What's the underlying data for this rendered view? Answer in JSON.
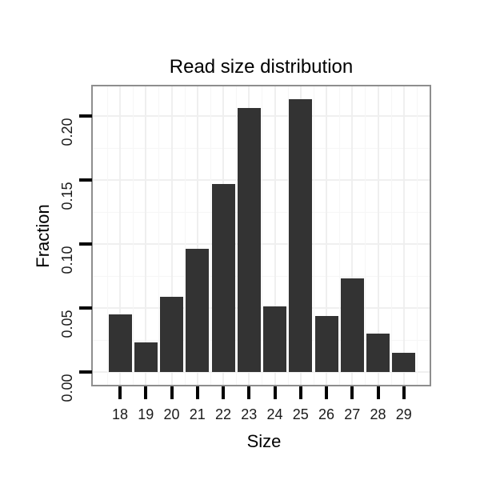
{
  "chart_data": {
    "type": "bar",
    "title": "Read size distribution",
    "xlabel": "Size",
    "ylabel": "Fraction",
    "categories": [
      "18",
      "19",
      "20",
      "21",
      "22",
      "23",
      "24",
      "25",
      "26",
      "27",
      "28",
      "29"
    ],
    "values": [
      0.045,
      0.023,
      0.059,
      0.096,
      0.147,
      0.206,
      0.051,
      0.213,
      0.044,
      0.073,
      0.03,
      0.015
    ],
    "ytick_labels": [
      "0.00",
      "0.05",
      "0.10",
      "0.15",
      "0.20"
    ],
    "ytick_values": [
      0.0,
      0.05,
      0.1,
      0.15,
      0.2
    ],
    "yminor_values": [
      0.025,
      0.075,
      0.125,
      0.175
    ],
    "ylim": [
      -0.011,
      0.224
    ],
    "grid": "major+minor",
    "legend": "none",
    "colors": {
      "bar": "#333333",
      "panel_border": "#8e8e8e",
      "grid_major": "#efefef",
      "grid_minor": "#f6f6f6",
      "tick": "#000000",
      "tick_text": "#1a1a1a",
      "title_text": "#000000"
    }
  }
}
